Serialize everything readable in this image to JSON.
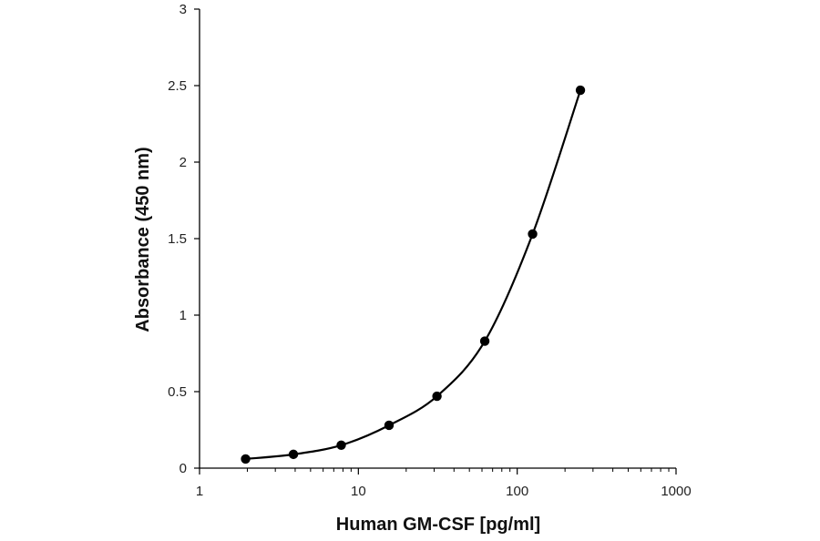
{
  "chart_data": {
    "type": "scatter",
    "title": "",
    "xlabel": "Human GM-CSF [pg/ml]",
    "ylabel": "Absorbance (450 nm)",
    "x_scale": "log",
    "xlim": [
      1,
      1000
    ],
    "ylim": [
      0,
      3
    ],
    "x_ticks": [
      1,
      10,
      100,
      1000
    ],
    "x_tick_labels": [
      "1",
      "10",
      "100",
      "1000"
    ],
    "y_ticks": [
      0,
      0.5,
      1,
      1.5,
      2,
      2.5,
      3
    ],
    "y_tick_labels": [
      "0",
      "0.5",
      "1",
      "1.5",
      "2",
      "2.5",
      "3"
    ],
    "grid": false,
    "legend": "none",
    "series": [
      {
        "x": [
          1.95,
          3.9,
          7.8,
          15.6,
          31.25,
          62.5,
          125,
          250
        ],
        "y": [
          0.06,
          0.09,
          0.15,
          0.28,
          0.47,
          0.83,
          1.53,
          2.47
        ],
        "marker": "circle",
        "line": "smooth",
        "color": "#000000"
      }
    ]
  }
}
